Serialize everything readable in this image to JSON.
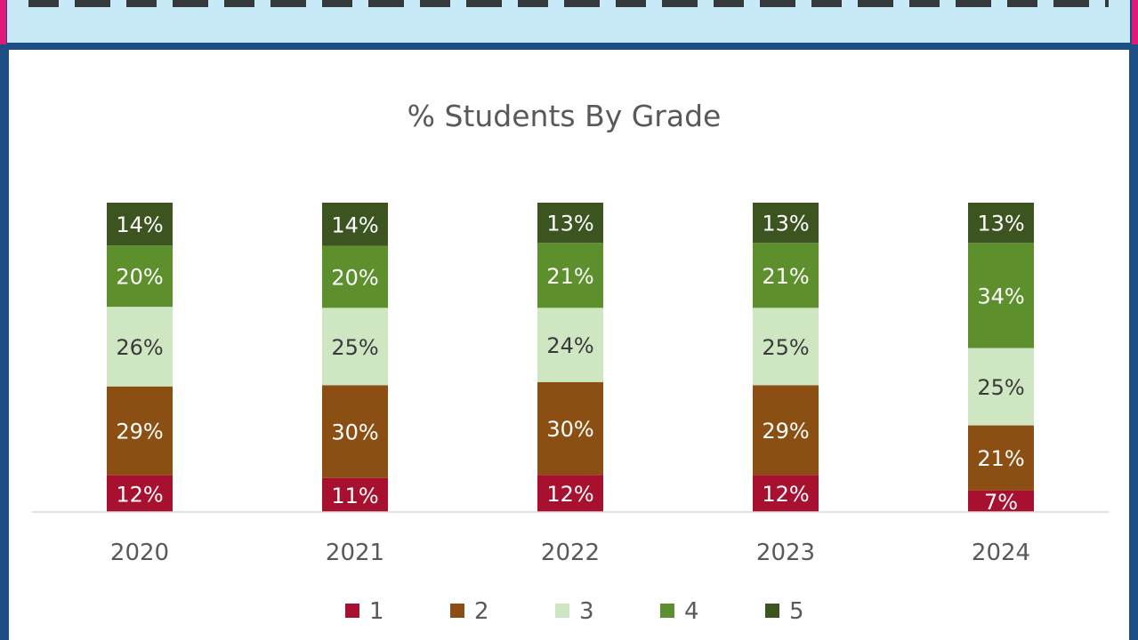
{
  "colors": {
    "grade1": "#a8102f",
    "grade2": "#8b4f13",
    "grade3": "#cfe6c3",
    "grade4": "#5d8f2c",
    "grade5": "#3b5420",
    "frame": "#1d4f86",
    "banner": "#c8e9f7",
    "accent_pink": "#e2187a"
  },
  "chart_data": {
    "type": "bar",
    "stacked": true,
    "title": "% Students By Grade",
    "categories": [
      "2020",
      "2021",
      "2022",
      "2023",
      "2024"
    ],
    "series": [
      {
        "name": "1",
        "values": [
          12,
          11,
          12,
          12,
          7
        ],
        "labels": [
          "12%",
          "11%",
          "12%",
          "12%",
          "7%"
        ]
      },
      {
        "name": "2",
        "values": [
          29,
          30,
          30,
          29,
          21
        ],
        "labels": [
          "29%",
          "30%",
          "30%",
          "29%",
          "21%"
        ]
      },
      {
        "name": "3",
        "values": [
          26,
          25,
          24,
          25,
          25
        ],
        "labels": [
          "26%",
          "25%",
          "24%",
          "25%",
          "25%"
        ]
      },
      {
        "name": "4",
        "values": [
          20,
          20,
          21,
          21,
          34
        ],
        "labels": [
          "20%",
          "20%",
          "21%",
          "21%",
          "34%"
        ]
      },
      {
        "name": "5",
        "values": [
          14,
          14,
          13,
          13,
          13
        ],
        "labels": [
          "14%",
          "14%",
          "13%",
          "13%",
          "13%"
        ]
      }
    ],
    "legend_position": "bottom",
    "grid": false
  }
}
